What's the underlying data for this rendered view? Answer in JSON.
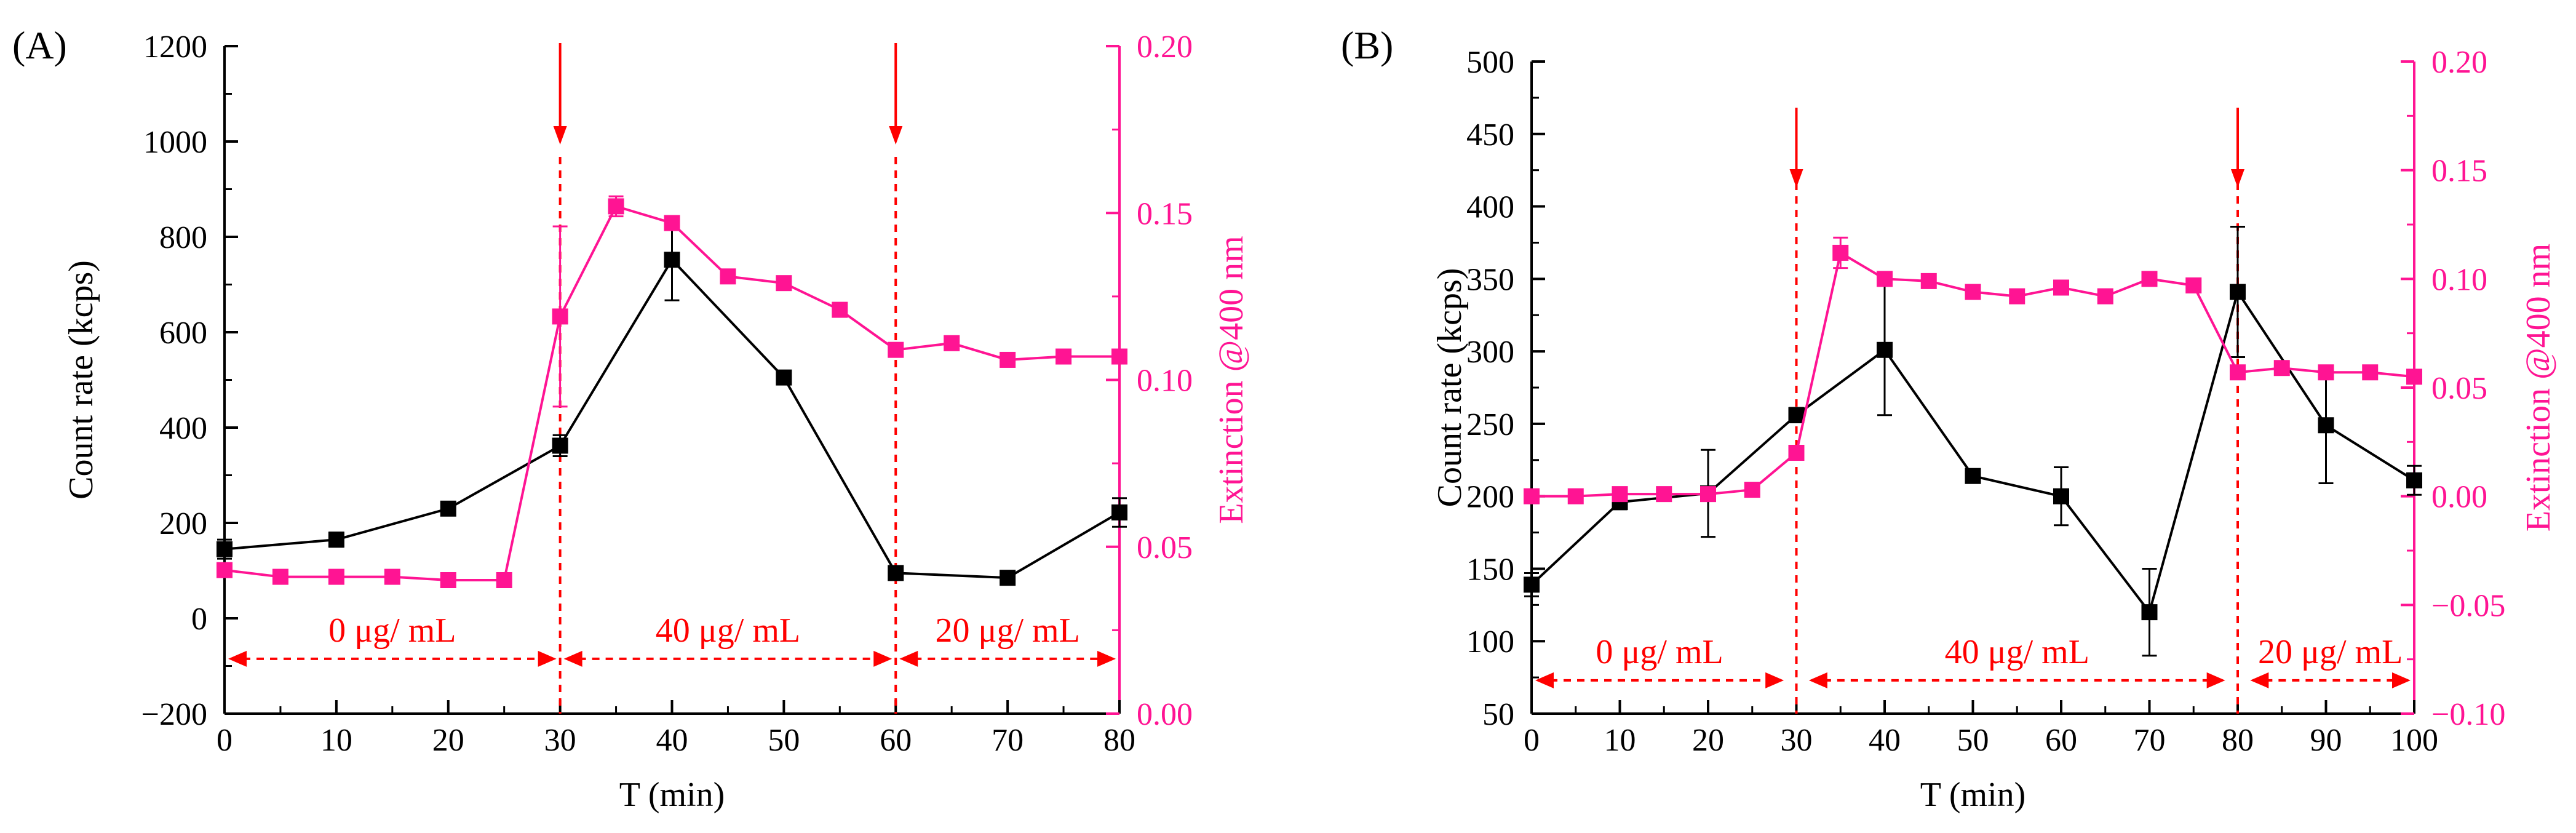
{
  "colors": {
    "black_series": "#000000",
    "magenta_series": "#ff1493",
    "annotation": "#ff0000",
    "axis": "#000000"
  },
  "chart_data": [
    {
      "panel": "(A)",
      "type": "line",
      "xlabel": "T (min)",
      "ylabel": "Count rate  (kcps)",
      "y2label": "Extinction @400 nm",
      "xlim": [
        0,
        80
      ],
      "ylim": [
        -200,
        1200
      ],
      "y2lim": [
        0.0,
        0.2
      ],
      "xticks": [
        0,
        10,
        20,
        30,
        40,
        50,
        60,
        70,
        80
      ],
      "xtick_labels": [
        "0",
        "10",
        "20",
        "30",
        "40",
        "50",
        "60",
        "70",
        "80"
      ],
      "yticks": [
        -200,
        0,
        200,
        400,
        600,
        800,
        1000,
        1200
      ],
      "ytick_labels": [
        "−200",
        "0",
        "200",
        "400",
        "600",
        "800",
        "1000",
        "1200"
      ],
      "y2ticks": [
        0.0,
        0.05,
        0.1,
        0.15,
        0.2
      ],
      "y2tick_labels": [
        "0.00",
        "0.05",
        "0.10",
        "0.15",
        "0.20"
      ],
      "series": [
        {
          "name": "Count rate",
          "axis": "left",
          "color": "#000000",
          "x": [
            0,
            10,
            20,
            30,
            40,
            50,
            60,
            70,
            80
          ],
          "y": [
            145,
            165,
            230,
            362,
            752,
            505,
            95,
            85,
            222
          ],
          "err": [
            20,
            15,
            10,
            22,
            85,
            0,
            0,
            0,
            30
          ]
        },
        {
          "name": "Extinction @400 nm",
          "axis": "right",
          "color": "#ff1493",
          "x": [
            0,
            5,
            10,
            15,
            20,
            25,
            30,
            35,
            40,
            45,
            50,
            55,
            60,
            65,
            70,
            75,
            80
          ],
          "y": [
            0.043,
            0.041,
            0.041,
            0.041,
            0.04,
            0.04,
            0.119,
            0.152,
            0.147,
            0.131,
            0.129,
            0.121,
            0.109,
            0.111,
            0.106,
            0.107,
            0.107
          ],
          "err": [
            0,
            0,
            0,
            0,
            0,
            0,
            0.027,
            0.003,
            0,
            0,
            0,
            0,
            0,
            0,
            0,
            0,
            0
          ]
        }
      ],
      "vlines": [
        30,
        60
      ],
      "arrows": [
        30,
        60
      ],
      "annotations": [
        {
          "from": 0,
          "to": 30,
          "text": "0 μg/ mL",
          "y": -85
        },
        {
          "from": 30,
          "to": 60,
          "text": "40 μg/ mL",
          "y": -85
        },
        {
          "from": 60,
          "to": 80,
          "text": "20 μg/ mL",
          "y": -85
        }
      ]
    },
    {
      "panel": "(B)",
      "type": "line",
      "xlabel": "T (min)",
      "ylabel": "Count rate  (kcps)",
      "y2label": "Extinction @400 nm",
      "xlim": [
        0,
        100
      ],
      "ylim": [
        50,
        500
      ],
      "y2lim": [
        -0.1,
        0.2
      ],
      "xticks": [
        0,
        10,
        20,
        30,
        40,
        50,
        60,
        70,
        80,
        90,
        100
      ],
      "xtick_labels": [
        "0",
        "10",
        "20",
        "30",
        "40",
        "50",
        "60",
        "70",
        "80",
        "90",
        "100"
      ],
      "yticks": [
        50,
        100,
        150,
        200,
        250,
        300,
        350,
        400,
        450,
        500
      ],
      "ytick_labels": [
        "50",
        "100",
        "150",
        "200",
        "250",
        "300",
        "350",
        "400",
        "450",
        "500"
      ],
      "y2ticks": [
        -0.1,
        -0.05,
        0.0,
        0.05,
        0.1,
        0.15,
        0.2
      ],
      "y2tick_labels": [
        "−0.10",
        "−0.05",
        "0.00",
        "0.05",
        "0.10",
        "0.15",
        "0.20"
      ],
      "series": [
        {
          "name": "Count rate",
          "axis": "left",
          "color": "#000000",
          "x": [
            0,
            10,
            20,
            30,
            40,
            50,
            60,
            70,
            80,
            90,
            100
          ],
          "y": [
            139,
            196,
            202,
            256,
            301,
            214,
            200,
            120,
            341,
            249,
            211
          ],
          "err": [
            8,
            5,
            30,
            5,
            45,
            0,
            20,
            30,
            45,
            40,
            10
          ]
        },
        {
          "name": "Extinction @400 nm",
          "axis": "right",
          "color": "#ff1493",
          "x": [
            0,
            5,
            10,
            15,
            20,
            25,
            30,
            35,
            40,
            45,
            50,
            55,
            60,
            65,
            70,
            75,
            80,
            85,
            90,
            95,
            100
          ],
          "y": [
            0.0,
            0.0,
            0.001,
            0.001,
            0.001,
            0.003,
            0.02,
            0.112,
            0.1,
            0.099,
            0.094,
            0.092,
            0.096,
            0.092,
            0.1,
            0.097,
            0.057,
            0.059,
            0.057,
            0.057,
            0.055
          ],
          "err": [
            0,
            0,
            0,
            0,
            0,
            0,
            0,
            0.007,
            0,
            0,
            0,
            0,
            0,
            0,
            0,
            0,
            0,
            0,
            0,
            0,
            0
          ]
        }
      ],
      "vlines": [
        30,
        80
      ],
      "arrows": [
        30,
        80
      ],
      "annotations": [
        {
          "from": 0,
          "to": 29,
          "text": "0 μg/ mL",
          "y": 73
        },
        {
          "from": 31,
          "to": 79,
          "text": "40 μg/ mL",
          "y": 73
        },
        {
          "from": 81,
          "to": 100,
          "text": "20 μg/ mL",
          "y": 73
        }
      ]
    }
  ]
}
